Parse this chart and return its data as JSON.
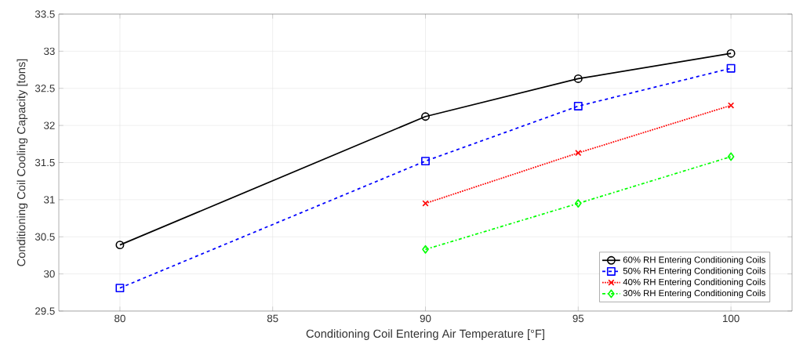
{
  "chart_data": {
    "type": "line",
    "xlabel": "Conditioning Coil Entering Air Temperature [°F]",
    "ylabel": "Conditioning Coil Cooling Capacity [tons]",
    "xlim": [
      78,
      102
    ],
    "xticks": [
      80,
      85,
      90,
      95,
      100
    ],
    "ylim": [
      29.5,
      33.5
    ],
    "yticks": [
      29.5,
      30,
      30.5,
      31,
      31.5,
      32,
      32.5,
      33,
      33.5
    ],
    "grid": true,
    "legend": "bottom right",
    "series": [
      {
        "name": "60% RH Entering Conditioning Coils",
        "color": "#000000",
        "marker": "circle",
        "line_style": "solid",
        "x": [
          80,
          90,
          95,
          100
        ],
        "values": [
          30.39,
          32.12,
          32.63,
          32.97
        ]
      },
      {
        "name": "50% RH Entering Conditioning Coils",
        "color": "#0000ff",
        "marker": "square",
        "line_style": "dashed",
        "x": [
          80,
          90,
          95,
          100
        ],
        "values": [
          29.81,
          31.52,
          32.26,
          32.77
        ]
      },
      {
        "name": "40% RH Entering Conditioning Coils",
        "color": "#ff0000",
        "marker": "cross",
        "line_style": "dotted",
        "x": [
          90,
          95,
          100
        ],
        "values": [
          30.95,
          31.63,
          32.27
        ]
      },
      {
        "name": "30% RH Entering Conditioning Coils",
        "color": "#00ff00",
        "marker": "diamond",
        "line_style": "dashdot",
        "x": [
          90,
          95,
          100
        ],
        "values": [
          30.33,
          30.95,
          31.58
        ]
      }
    ]
  }
}
